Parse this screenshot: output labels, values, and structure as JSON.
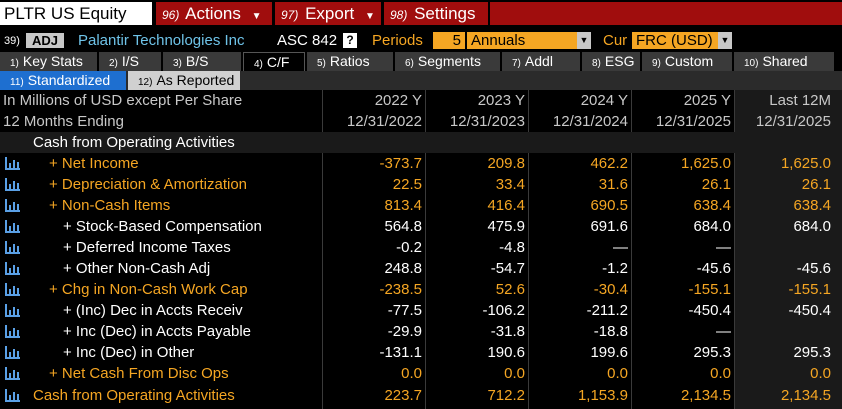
{
  "header": {
    "ticker": "PLTR US Equity",
    "actions_num": "96)",
    "actions": "Actions",
    "export_num": "97)",
    "export": "Export",
    "settings_num": "98)",
    "settings": "Settings"
  },
  "info": {
    "num": "39)",
    "adj": "ADJ",
    "company": "Palantir Technologies Inc",
    "standard": "ASC 842",
    "help": "?",
    "periods_label": "Periods",
    "periods_value": "5",
    "frequency": "Annuals",
    "cur_label": "Cur",
    "currency": "FRC (USD)"
  },
  "tabs": [
    {
      "num": "1)",
      "label": "Key Stats"
    },
    {
      "num": "2)",
      "label": "I/S"
    },
    {
      "num": "3)",
      "label": "B/S"
    },
    {
      "num": "4)",
      "label": "C/F"
    },
    {
      "num": "5)",
      "label": "Ratios"
    },
    {
      "num": "6)",
      "label": "Segments"
    },
    {
      "num": "7)",
      "label": "Addl"
    },
    {
      "num": "8)",
      "label": "ESG"
    },
    {
      "num": "9)",
      "label": "Custom"
    },
    {
      "num": "10)",
      "label": "Shared"
    }
  ],
  "subtabs": [
    {
      "num": "11)",
      "label": "Standardized"
    },
    {
      "num": "12)",
      "label": "As Reported"
    }
  ],
  "table": {
    "header1_label": "In Millions of USD except Per Share",
    "header2_label": "12 Months Ending",
    "columns": [
      {
        "year": "2022 Y",
        "date": "12/31/2022"
      },
      {
        "year": "2023 Y",
        "date": "12/31/2023"
      },
      {
        "year": "2024 Y",
        "date": "12/31/2024"
      },
      {
        "year": "2025 Y",
        "date": "12/31/2025"
      },
      {
        "year": "Last 12M",
        "date": "12/31/2025"
      }
    ],
    "section": "Cash from Operating Activities",
    "rows": [
      {
        "label": "+ Net Income",
        "values": [
          "-373.7",
          "209.8",
          "462.2",
          "1,625.0",
          "1,625.0"
        ]
      },
      {
        "label": "+ Depreciation & Amortization",
        "values": [
          "22.5",
          "33.4",
          "31.6",
          "26.1",
          "26.1"
        ]
      },
      {
        "label": "+ Non-Cash Items",
        "values": [
          "813.4",
          "416.4",
          "690.5",
          "638.4",
          "638.4"
        ]
      },
      {
        "label": "+ Stock-Based Compensation",
        "values": [
          "564.8",
          "475.9",
          "691.6",
          "684.0",
          "684.0"
        ]
      },
      {
        "label": "+ Deferred Income Taxes",
        "values": [
          "-0.2",
          "-4.8",
          "—",
          "—",
          ""
        ]
      },
      {
        "label": "+ Other Non-Cash Adj",
        "values": [
          "248.8",
          "-54.7",
          "-1.2",
          "-45.6",
          "-45.6"
        ]
      },
      {
        "label": "+ Chg in Non-Cash Work Cap",
        "values": [
          "-238.5",
          "52.6",
          "-30.4",
          "-155.1",
          "-155.1"
        ]
      },
      {
        "label": "+ (Inc) Dec in Accts Receiv",
        "values": [
          "-77.5",
          "-106.2",
          "-211.2",
          "-450.4",
          "-450.4"
        ]
      },
      {
        "label": "+ Inc (Dec) in Accts Payable",
        "values": [
          "-29.9",
          "-31.8",
          "-18.8",
          "—",
          ""
        ]
      },
      {
        "label": "+ Inc (Dec) in Other",
        "values": [
          "-131.1",
          "190.6",
          "199.6",
          "295.3",
          "295.3"
        ]
      },
      {
        "label": "+ Net Cash From Disc Ops",
        "values": [
          "0.0",
          "0.0",
          "0.0",
          "0.0",
          "0.0"
        ]
      },
      {
        "label": "Cash from Operating Activities",
        "values": [
          "223.7",
          "712.2",
          "1,153.9",
          "2,134.5",
          "2,134.5"
        ]
      }
    ]
  },
  "colors": {
    "accent_orange": "#f5a623",
    "bar_red": "#a00d0d",
    "company_blue": "#6fc3e8",
    "tab_blue": "#1e6fd0"
  },
  "icons": {
    "row_chart": "bar-chart-icon"
  }
}
